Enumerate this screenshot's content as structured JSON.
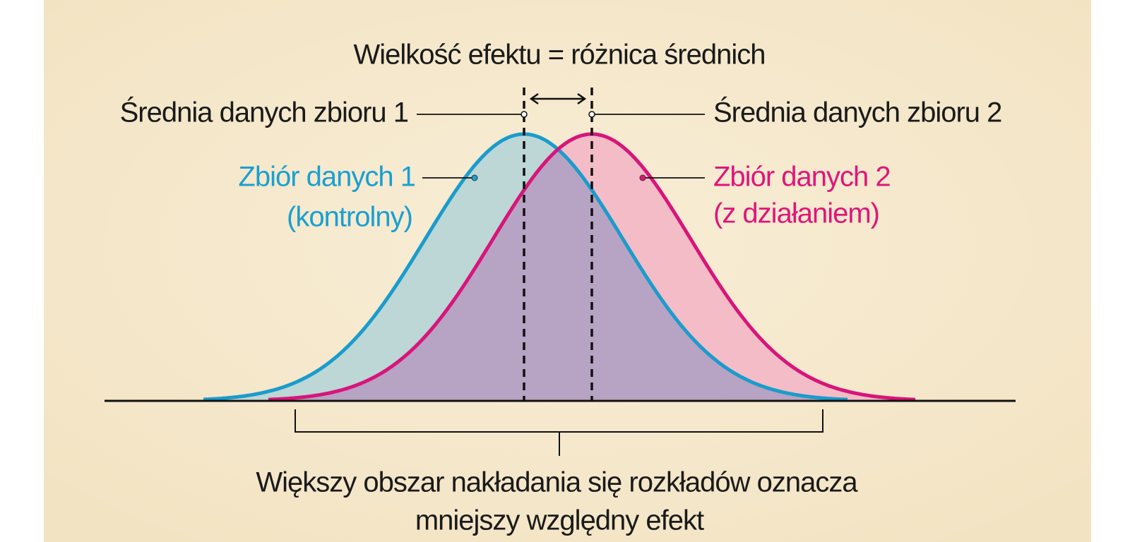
{
  "title": "Wielkość efektu = różnica średnich",
  "mean_labels": [
    "Średnia danych zbioru 1",
    "Średnia danych zbioru 2"
  ],
  "datasets": [
    {
      "name": "Zbiór danych 1",
      "note": "(kontrolny)"
    },
    {
      "name": "Zbiór danych 2",
      "note": "(z działaniem)"
    }
  ],
  "caption": [
    "Większy obszar nakładania się rozkładów oznacza",
    "mniejszy względny efekt"
  ]
}
